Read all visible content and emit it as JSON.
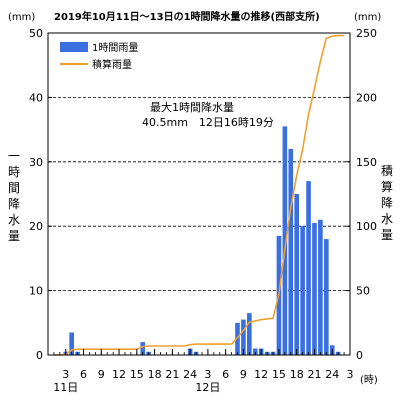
{
  "chart_data": {
    "type": "bar",
    "title": "2019年10月11日～13日の1時間降水量の推移(西部支所)",
    "left_unit": "(mm)",
    "right_unit": "(mm)",
    "ylabel_left": "一時間降水量",
    "ylabel_right": "積算降水量",
    "xlabel_unit": "(時)",
    "ylim_left": [
      0,
      50
    ],
    "ylim_right": [
      0,
      250
    ],
    "yticks_left": [
      "0",
      "10",
      "20",
      "30",
      "40",
      "50"
    ],
    "yticks_right": [
      "0",
      "50",
      "100",
      "150",
      "200",
      "250"
    ],
    "x_tick_labels": [
      "3",
      "6",
      "9",
      "12",
      "15",
      "18",
      "21",
      "24",
      "3",
      "6",
      "9",
      "12",
      "15",
      "18",
      "21",
      "24",
      "3"
    ],
    "day_labels": [
      "11日",
      "12日"
    ],
    "grid": "horizontal dashed",
    "legend_position": "top-left",
    "legend": [
      "1時間雨量",
      "積算雨量"
    ],
    "annotation_lines": [
      "最大1時間降水量",
      "40.5mm　12日16時19分"
    ],
    "colors": {
      "bars": "#3a6fe0",
      "line": "#f0a030",
      "grid": "#000000"
    },
    "series": [
      {
        "name": "1時間雨量",
        "type": "bar",
        "axis": "left",
        "values": [
          0,
          0,
          0.5,
          3.5,
          0.5,
          0,
          0,
          0,
          0,
          0,
          0,
          0,
          0,
          0,
          0,
          2,
          0.5,
          0,
          0,
          0,
          0,
          0,
          0,
          1,
          0.5,
          0,
          0,
          0,
          0,
          0,
          0,
          5,
          5.5,
          6.5,
          1,
          1,
          0.5,
          0.5,
          18.5,
          35.5,
          32,
          25,
          20,
          27,
          20.5,
          21,
          18,
          1.5,
          0.5,
          0
        ]
      },
      {
        "name": "積算雨量",
        "type": "line",
        "axis": "right",
        "values": [
          0,
          0,
          0.5,
          4,
          4.5,
          4.5,
          4.5,
          4.5,
          4.5,
          4.5,
          4.5,
          4.5,
          4.5,
          4.5,
          4.5,
          6.5,
          7,
          7,
          7,
          7,
          7,
          7,
          7,
          8,
          8.5,
          8.5,
          8.5,
          8.5,
          8.5,
          8.5,
          8.5,
          13.5,
          19,
          25.5,
          26.5,
          27.5,
          28,
          28.5,
          47,
          82.5,
          114.5,
          139.5,
          159.5,
          186.5,
          207,
          228,
          246,
          247.5,
          248,
          248
        ]
      }
    ]
  }
}
